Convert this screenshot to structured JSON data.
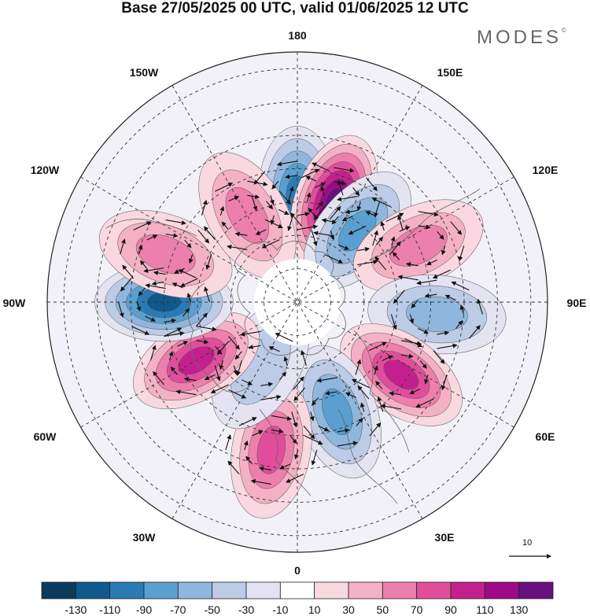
{
  "title": "Base 27/05/2025 00 UTC, valid 01/06/2025 12 UTC",
  "brand": "MODES",
  "brand_mark": "©",
  "longitude_labels": {
    "top": "180",
    "upper_left": "150W",
    "upper_right": "150E",
    "left_high": "120W",
    "right_high": "120E",
    "left": "90W",
    "right": "90E",
    "left_low": "60W",
    "right_low": "60E",
    "lower_left": "30W",
    "lower_right": "30E",
    "bottom": "0"
  },
  "vector_reference": "10",
  "colorbar": {
    "levels": [
      "-130",
      "-110",
      "-90",
      "-70",
      "-50",
      "-30",
      "-10",
      "10",
      "30",
      "50",
      "70",
      "90",
      "110",
      "130"
    ],
    "colors": [
      "#0b3a5e",
      "#10598c",
      "#2a7bb5",
      "#5a9fcf",
      "#8fb7dd",
      "#bccbe6",
      "#e3e3f1",
      "#ffffff",
      "#f9d8e0",
      "#f4b1c5",
      "#ec7fab",
      "#e04e9b",
      "#c4208d",
      "#9c0b85",
      "#6a0f7e"
    ]
  },
  "anomaly_field": {
    "shading_legend_values": "geopotential-like anomaly, -130 to 130",
    "cells": [
      {
        "sign": "negative",
        "intensity": 4,
        "lon": 180,
        "lat": 58
      },
      {
        "sign": "positive",
        "intensity": 6,
        "lon": 160,
        "lat": 58
      },
      {
        "sign": "negative",
        "intensity": 3,
        "lon": 140,
        "lat": 62
      },
      {
        "sign": "positive",
        "intensity": 2,
        "lon": 115,
        "lat": 50
      },
      {
        "sign": "negative",
        "intensity": 2,
        "lon": 85,
        "lat": 48
      },
      {
        "sign": "positive",
        "intensity": 4,
        "lon": 55,
        "lat": 52
      },
      {
        "sign": "negative",
        "intensity": 3,
        "lon": 20,
        "lat": 55
      },
      {
        "sign": "positive",
        "intensity": 3,
        "lon": -10,
        "lat": 45
      },
      {
        "sign": "negative",
        "intensity": 1,
        "lon": -30,
        "lat": 68
      },
      {
        "sign": "positive",
        "intensity": 4,
        "lon": -60,
        "lat": 55
      },
      {
        "sign": "negative",
        "intensity": 5,
        "lon": -90,
        "lat": 50
      },
      {
        "sign": "positive",
        "intensity": 2,
        "lon": -110,
        "lat": 48
      },
      {
        "sign": "positive",
        "intensity": 2,
        "lon": -150,
        "lat": 60
      }
    ]
  }
}
